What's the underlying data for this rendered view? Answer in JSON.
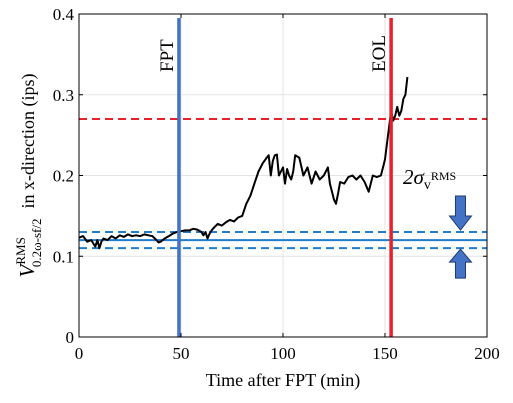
{
  "chart_data": {
    "type": "line",
    "title": "",
    "xlabel": "Time after FPT (min)",
    "ylabel_main": "V",
    "ylabel_sup": "RMS",
    "ylabel_sub": "0.2ω-sf/2",
    "ylabel_rest": "in x-direction (ips)",
    "xlim": [
      0,
      200
    ],
    "ylim": [
      0,
      0.4
    ],
    "xticks": [
      0,
      50,
      100,
      150,
      200
    ],
    "xtick_labels": [
      "0",
      "50",
      "100",
      "150",
      "200"
    ],
    "yticks": [
      0,
      0.1,
      0.2,
      0.3,
      0.4
    ],
    "ytick_labels": [
      "0",
      "0.1",
      "0.2",
      "0.3",
      "0.4"
    ],
    "grid": true,
    "series": [
      {
        "color": "#000000",
        "x": [
          0,
          2,
          4,
          6,
          8,
          9,
          10,
          11,
          12,
          14,
          16,
          18,
          20,
          22,
          24,
          26,
          28,
          30,
          32,
          34,
          36,
          38,
          39,
          40,
          42,
          44,
          46,
          48,
          50,
          52,
          54,
          56,
          58,
          60,
          61,
          62,
          63,
          64,
          65,
          66,
          68,
          70,
          72,
          74,
          76,
          78,
          80,
          82,
          84,
          86,
          88,
          90,
          92,
          93,
          94,
          95,
          96,
          97,
          98,
          100,
          101,
          102,
          103,
          104,
          105,
          106,
          108,
          110,
          112,
          114,
          116,
          118,
          120,
          122,
          123,
          124,
          125,
          126,
          127,
          128,
          130,
          132,
          134,
          136,
          138,
          140,
          142,
          144,
          146,
          148,
          149,
          150,
          151,
          152,
          153,
          154,
          155,
          156,
          157,
          158,
          159,
          160,
          161
        ],
        "y": [
          0.123,
          0.125,
          0.118,
          0.12,
          0.112,
          0.12,
          0.11,
          0.118,
          0.122,
          0.12,
          0.125,
          0.122,
          0.126,
          0.124,
          0.127,
          0.125,
          0.126,
          0.125,
          0.127,
          0.126,
          0.125,
          0.12,
          0.117,
          0.118,
          0.122,
          0.125,
          0.128,
          0.13,
          0.131,
          0.132,
          0.132,
          0.134,
          0.133,
          0.13,
          0.126,
          0.13,
          0.122,
          0.128,
          0.132,
          0.135,
          0.14,
          0.138,
          0.142,
          0.145,
          0.143,
          0.148,
          0.15,
          0.165,
          0.175,
          0.19,
          0.205,
          0.215,
          0.222,
          0.225,
          0.2,
          0.218,
          0.225,
          0.226,
          0.2,
          0.21,
          0.19,
          0.208,
          0.2,
          0.195,
          0.205,
          0.225,
          0.222,
          0.2,
          0.21,
          0.19,
          0.205,
          0.195,
          0.2,
          0.21,
          0.19,
          0.18,
          0.17,
          0.165,
          0.178,
          0.192,
          0.19,
          0.198,
          0.2,
          0.195,
          0.2,
          0.192,
          0.18,
          0.2,
          0.198,
          0.2,
          0.21,
          0.22,
          0.24,
          0.26,
          0.28,
          0.268,
          0.274,
          0.285,
          0.274,
          0.28,
          0.295,
          0.3,
          0.322
        ]
      }
    ],
    "hlines": [
      {
        "y": 0.27,
        "color": "#e8212a",
        "style": "dashed"
      },
      {
        "y": 0.13,
        "color": "#1f7dc9",
        "style": "dashed"
      },
      {
        "y": 0.12,
        "color": "#1f7dc9",
        "style": "solid"
      },
      {
        "y": 0.11,
        "color": "#1f7dc9",
        "style": "dashed"
      }
    ],
    "vlines": [
      {
        "x": 49,
        "color": "#4472c4",
        "label": "FPT"
      },
      {
        "x": 153,
        "color": "#e8212a",
        "label": "EOL"
      }
    ],
    "sigma_annotation": {
      "text_main": "2σ",
      "text_sub": "v",
      "text_subsup": "RMS",
      "arrow_color": "#4472c4",
      "arrow_x": 187
    }
  }
}
